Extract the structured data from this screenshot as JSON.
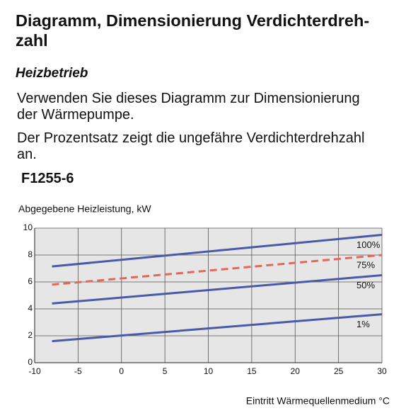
{
  "header": {
    "title_lines": [
      "Diagramm, Dimensionierung Verdichterdreh-",
      "zahl"
    ]
  },
  "section": {
    "heading": "Heizbetrieb",
    "paragraphs": [
      [
        "Verwenden Sie dieses Diagramm zur Dimensionierung",
        "der Wärmepumpe."
      ],
      [
        "Der Prozentsatz zeigt die ungefähre Verdichterdrehzahl",
        "an."
      ]
    ],
    "model": "F1255-6"
  },
  "chart_data": {
    "type": "line",
    "y_label": "Abgegebene Heizleistung, kW",
    "x_label": "Eintritt Wärmequellenmedium °C",
    "x": [
      -8,
      30
    ],
    "series": [
      {
        "name": "100%",
        "color": "#4a5aa8",
        "values": [
          7.15,
          9.5
        ]
      },
      {
        "name": "75%",
        "color": "#e2685c",
        "dashed": true,
        "values": [
          5.8,
          8.0
        ]
      },
      {
        "name": "50%",
        "color": "#4a5aa8",
        "values": [
          4.4,
          6.5
        ]
      },
      {
        "name": "1%",
        "color": "#4a5aa8",
        "values": [
          1.6,
          3.6
        ]
      }
    ],
    "xlim": [
      -10,
      30
    ],
    "xticks": [
      -10,
      -5,
      0,
      5,
      10,
      15,
      20,
      25,
      30
    ],
    "ylim": [
      0,
      10
    ],
    "yticks": [
      0,
      2,
      4,
      6,
      8,
      10
    ],
    "grid": true
  }
}
